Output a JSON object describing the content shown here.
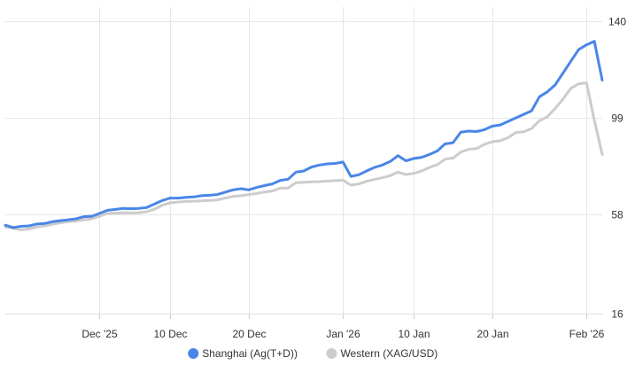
{
  "chart_data": {
    "type": "line",
    "y_ticks": [
      16,
      58,
      99,
      140
    ],
    "ylim": [
      16,
      140
    ],
    "y_axis_side": "right",
    "x_ticks": [
      {
        "label": "Dec '25",
        "x": "2025-12-01"
      },
      {
        "label": "10 Dec",
        "x": "2025-12-10"
      },
      {
        "label": "20 Dec",
        "x": "2025-12-20"
      },
      {
        "label": "Jan '26",
        "x": "2026-01-01"
      },
      {
        "label": "10 Jan",
        "x": "2026-01-10"
      },
      {
        "label": "20 Jan",
        "x": "2026-01-20"
      },
      {
        "label": "Feb '26",
        "x": "2026-02-01"
      }
    ],
    "xlim": [
      "2025-11-19",
      "2026-02-03"
    ],
    "grid": true,
    "legend_position": "bottom",
    "x": [
      "2025-11-19",
      "2025-11-20",
      "2025-11-21",
      "2025-11-22",
      "2025-11-23",
      "2025-11-24",
      "2025-11-25",
      "2025-11-26",
      "2025-11-27",
      "2025-11-28",
      "2025-11-29",
      "2025-11-30",
      "2025-12-01",
      "2025-12-02",
      "2025-12-03",
      "2025-12-04",
      "2025-12-05",
      "2025-12-06",
      "2025-12-07",
      "2025-12-08",
      "2025-12-09",
      "2025-12-10",
      "2025-12-11",
      "2025-12-12",
      "2025-12-13",
      "2025-12-14",
      "2025-12-15",
      "2025-12-16",
      "2025-12-17",
      "2025-12-18",
      "2025-12-19",
      "2025-12-20",
      "2025-12-21",
      "2025-12-22",
      "2025-12-23",
      "2025-12-24",
      "2025-12-25",
      "2025-12-26",
      "2025-12-27",
      "2025-12-28",
      "2025-12-29",
      "2025-12-30",
      "2025-12-31",
      "2026-01-01",
      "2026-01-02",
      "2026-01-03",
      "2026-01-04",
      "2026-01-05",
      "2026-01-06",
      "2026-01-07",
      "2026-01-08",
      "2026-01-09",
      "2026-01-10",
      "2026-01-11",
      "2026-01-12",
      "2026-01-13",
      "2026-01-14",
      "2026-01-15",
      "2026-01-16",
      "2026-01-17",
      "2026-01-18",
      "2026-01-19",
      "2026-01-20",
      "2026-01-21",
      "2026-01-22",
      "2026-01-23",
      "2026-01-24",
      "2026-01-25",
      "2026-01-26",
      "2026-01-27",
      "2026-01-28",
      "2026-01-29",
      "2026-01-30",
      "2026-01-31",
      "2026-02-01",
      "2026-02-02",
      "2026-02-03"
    ],
    "series": [
      {
        "name": "Shanghai (Ag(T+D))",
        "color": "#4a86e8",
        "values": [
          53.5,
          52.5,
          53,
          53.2,
          54,
          54.2,
          55,
          55.4,
          55.8,
          56.2,
          57.1,
          57.3,
          58.5,
          59.8,
          60.2,
          60.6,
          60.5,
          60.6,
          61,
          62.5,
          64,
          65,
          65,
          65.3,
          65.5,
          66,
          66.2,
          66.5,
          67.5,
          68.5,
          69,
          68.5,
          69.5,
          70.3,
          71,
          72.5,
          73,
          76,
          76.5,
          78.2,
          79,
          79.5,
          79.7,
          80.3,
          74.2,
          74.9,
          76.5,
          78,
          79,
          80.5,
          83,
          80.8,
          81.8,
          82.3,
          83.5,
          85,
          88,
          88.5,
          93,
          93.4,
          93.2,
          94,
          95.5,
          96,
          97.5,
          99,
          100.5,
          102,
          108,
          110,
          113,
          118,
          123,
          128,
          130,
          131.5,
          115
        ]
      },
      {
        "name": "Western (XAG/USD)",
        "color": "#cccccc",
        "values": [
          52.8,
          52.2,
          51.5,
          51.9,
          52.7,
          53.2,
          53.9,
          54.5,
          55,
          55.3,
          55.8,
          56.2,
          57.3,
          58.5,
          58.6,
          58.8,
          58.7,
          58.8,
          59.2,
          60.3,
          62,
          63,
          63.3,
          63.6,
          63.7,
          63.8,
          64,
          64.2,
          65,
          65.7,
          66,
          66.5,
          67,
          67.6,
          68,
          69.2,
          69.3,
          71.5,
          71.7,
          71.9,
          72,
          72.2,
          72.4,
          72.6,
          70.5,
          71,
          72.1,
          72.9,
          73.6,
          74.5,
          76,
          75,
          75.5,
          76.5,
          78,
          79.2,
          81.5,
          82,
          84.5,
          85.7,
          86,
          87.8,
          88.9,
          89.3,
          90.6,
          92.8,
          93.1,
          94.5,
          97.8,
          99.5,
          103,
          107,
          111.5,
          113.5,
          113.8,
          98,
          83.5
        ]
      }
    ]
  }
}
